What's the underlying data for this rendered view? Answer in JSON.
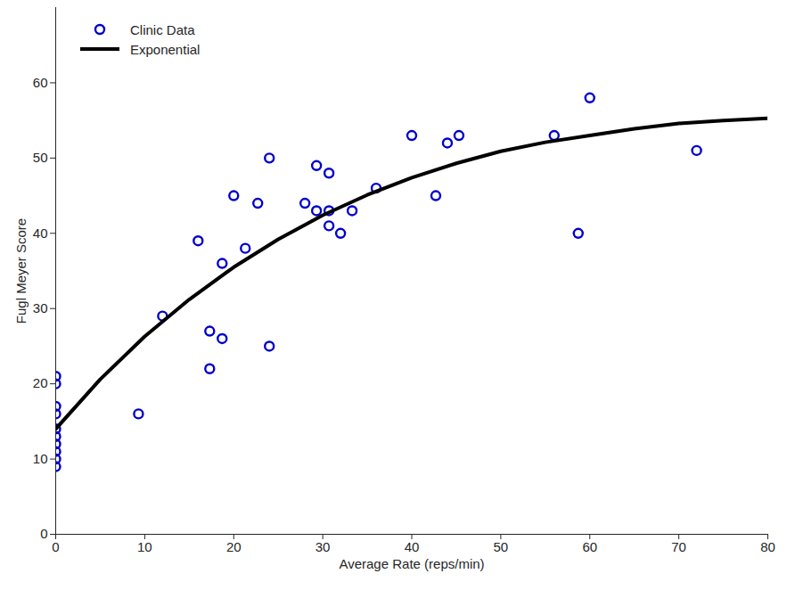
{
  "chart_data": {
    "type": "scatter",
    "x_label": "Average Rate (reps/min)",
    "y_label": "Fugl Meyer Score",
    "xlim": [
      0,
      80
    ],
    "xticks": [
      0,
      10,
      20,
      30,
      40,
      50,
      60,
      70,
      80
    ],
    "ylim": [
      0,
      70
    ],
    "yticks": [
      0,
      10,
      20,
      30,
      40,
      50,
      60
    ],
    "grid": false,
    "legend": "top-left",
    "series": [
      {
        "name": "Clinic Data",
        "type": "scatter",
        "color": "#0000cc",
        "marker": "circle",
        "x": [
          0,
          0,
          0,
          0,
          0,
          0,
          0,
          0,
          0,
          0,
          9.3,
          12,
          16,
          17.3,
          17.3,
          18.7,
          18.7,
          20,
          21.3,
          22.7,
          24,
          24,
          28,
          29.3,
          29.3,
          30.7,
          30.7,
          30.7,
          32,
          33.3,
          36,
          40,
          42.7,
          44,
          45.3,
          56,
          58.7,
          60,
          72
        ],
        "values": [
          21,
          20,
          17,
          16,
          14,
          13,
          12,
          11,
          10,
          9,
          16,
          29,
          39,
          27,
          22,
          36,
          26,
          45,
          38,
          44,
          50,
          25,
          44,
          49,
          43,
          48,
          43,
          41,
          40,
          43,
          46,
          53,
          45,
          52,
          53,
          53,
          40,
          58,
          51
        ]
      },
      {
        "name": "Exponential",
        "type": "line",
        "color": "#000000",
        "line_style": "solid",
        "x": [
          0,
          5,
          10,
          15,
          20,
          25,
          30,
          35,
          40,
          45,
          50,
          55,
          60,
          65,
          70,
          75,
          80
        ],
        "values": [
          14,
          20.6,
          26.3,
          31.2,
          35.5,
          39.2,
          42.4,
          45.1,
          47.4,
          49.3,
          50.9,
          52.1,
          53,
          53.9,
          54.6,
          55,
          55.3
        ]
      }
    ]
  }
}
